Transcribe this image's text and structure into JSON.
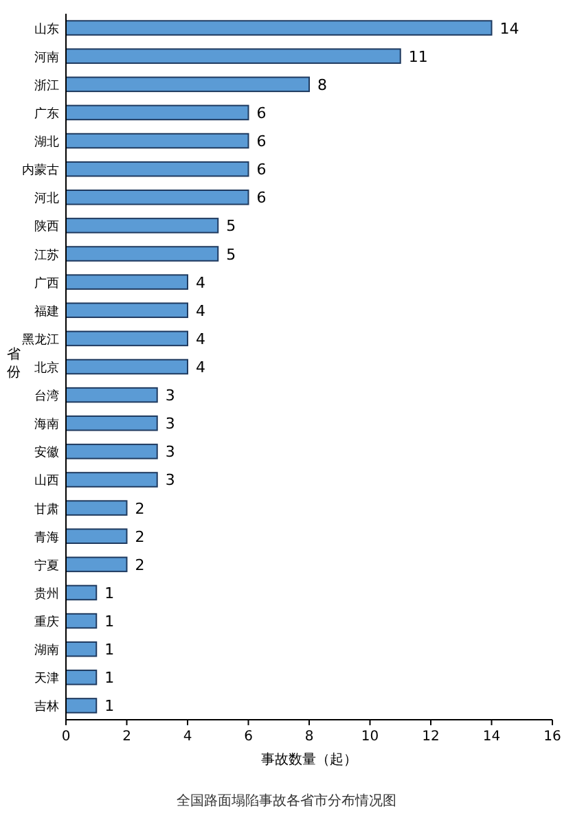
{
  "chart_data": {
    "type": "bar",
    "orientation": "horizontal",
    "title": "全国路面塌陷事故各省市分布情况图",
    "xlabel": "事故数量（起）",
    "ylabel": "省份",
    "categories": [
      "山东",
      "河南",
      "浙江",
      "广东",
      "湖北",
      "内蒙古",
      "河北",
      "陕西",
      "江苏",
      "广西",
      "福建",
      "黑龙江",
      "北京",
      "台湾",
      "海南",
      "安徽",
      "山西",
      "甘肃",
      "青海",
      "宁夏",
      "贵州",
      "重庆",
      "湖南",
      "天津",
      "吉林"
    ],
    "values": [
      14,
      11,
      8,
      6,
      6,
      6,
      6,
      5,
      5,
      4,
      4,
      4,
      4,
      3,
      3,
      3,
      3,
      2,
      2,
      2,
      1,
      1,
      1,
      1,
      1
    ],
    "color": "#5b9bd5",
    "xlim": [
      0,
      16
    ],
    "xticks": [
      0,
      2,
      4,
      6,
      8,
      10,
      12,
      14,
      16
    ],
    "data_labels": true
  }
}
